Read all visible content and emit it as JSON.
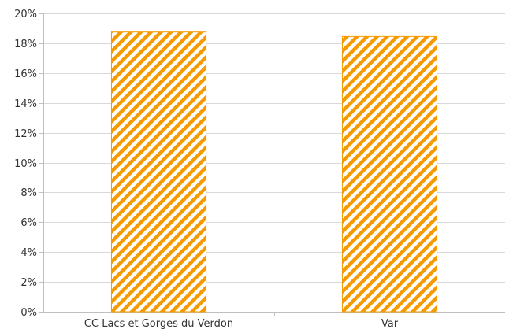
{
  "chart_data": {
    "type": "bar",
    "categories": [
      "CC Lacs et Gorges du Verdon",
      "Var"
    ],
    "series": [
      {
        "values": [
          0.1875,
          0.1845
        ]
      }
    ],
    "ylim": [
      0,
      0.2
    ],
    "yticks": [
      "0%",
      "2%",
      "4%",
      "6%",
      "8%",
      "10%",
      "12%",
      "14%",
      "16%",
      "18%",
      "20%"
    ],
    "grid": true,
    "legend": "none",
    "bar_color": "#f59a00",
    "bar_pattern": "diagonal-hatch"
  }
}
